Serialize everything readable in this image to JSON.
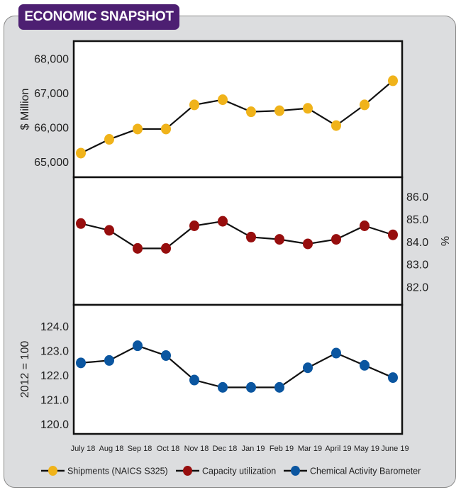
{
  "header": {
    "title": "ECONOMIC SNAPSHOT"
  },
  "chart_data": [
    {
      "type": "line",
      "title": "Shipments (NAICS S325)",
      "ylabel": "$ Million",
      "ylim": [
        64550,
        68500
      ],
      "yticks": [
        "65,000",
        "66,000",
        "67,000",
        "68,000"
      ],
      "ytick_values": [
        65000,
        66000,
        67000,
        68000
      ],
      "color": "#f0b31a",
      "values": [
        65250,
        65650,
        65950,
        65950,
        66650,
        66800,
        66450,
        66480,
        66550,
        66050,
        66650,
        67350
      ]
    },
    {
      "type": "line",
      "title": "Capacity utilization",
      "ylabel": "%",
      "ylim": [
        81.2,
        86.85
      ],
      "yticks": [
        "82.0",
        "83.0",
        "84.0",
        "85.0",
        "86.0"
      ],
      "ytick_values": [
        82,
        83,
        84,
        85,
        86
      ],
      "color": "#970e0e",
      "values": [
        84.8,
        84.5,
        83.7,
        83.7,
        84.7,
        84.9,
        84.2,
        84.1,
        83.9,
        84.1,
        84.7,
        84.3
      ]
    },
    {
      "type": "line",
      "title": "Chemical Activity Barometer",
      "ylabel": "2012 = 100",
      "ylim": [
        119.6,
        124.87
      ],
      "yticks": [
        "120.0",
        "121.0",
        "122.0",
        "123.0",
        "124.0"
      ],
      "ytick_values": [
        120,
        121,
        122,
        123,
        124
      ],
      "color": "#0b56a0",
      "values": [
        122.5,
        122.6,
        123.2,
        122.8,
        121.8,
        121.5,
        121.5,
        121.5,
        122.3,
        122.9,
        122.4,
        121.9
      ]
    }
  ],
  "categories": [
    "July 18",
    "Aug 18",
    "Sep 18",
    "Oct 18",
    "Nov 18",
    "Dec 18",
    "Jan 19",
    "Feb 19",
    "Mar 19",
    "April 19",
    "May 19",
    "June 19"
  ],
  "legend": [
    "Shipments (NAICS S325)",
    "Capacity utilization",
    "Chemical Activity Barometer"
  ],
  "legend_position": "bottom"
}
